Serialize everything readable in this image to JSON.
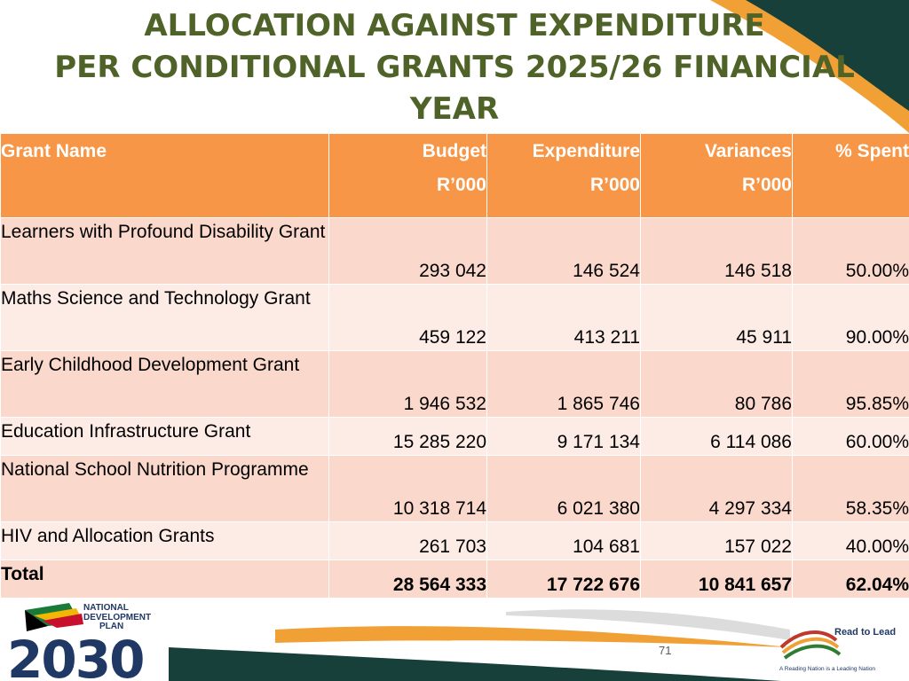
{
  "title": {
    "line1": "ALLOCATION AGAINST EXPENDITURE",
    "line2": "PER CONDITIONAL GRANTS 2025/26 FINANCIAL",
    "line3": "YEAR"
  },
  "table": {
    "headers": {
      "name": "Grant Name",
      "budget": "Budget",
      "budget_unit": "R’000",
      "expenditure": "Expenditure",
      "expenditure_unit": "R’000",
      "variances": "Variances",
      "variances_unit": "R’000",
      "spent": "% Spent"
    },
    "rows": [
      {
        "name": "Learners with Profound Disability Grant",
        "budget": "293 042",
        "expenditure": "146 524",
        "variance": "146 518",
        "spent": "50.00%"
      },
      {
        "name": "Maths Science and Technology Grant",
        "budget": "459 122",
        "expenditure": "413 211",
        "variance": "45 911",
        "spent": "90.00%"
      },
      {
        "name": "Early Childhood Development Grant",
        "budget": "1 946 532",
        "expenditure": "1 865 746",
        "variance": "80 786",
        "spent": "95.85%"
      },
      {
        "name": "Education Infrastructure Grant",
        "budget": "15 285 220",
        "expenditure": "9 171 134",
        "variance": "6 114 086",
        "spent": "60.00%"
      },
      {
        "name": "National School Nutrition Programme",
        "budget": "10 318 714",
        "expenditure": "6 021 380",
        "variance": "4 297 334",
        "spent": "58.35%"
      },
      {
        "name": "HIV and Allocation Grants",
        "budget": "261 703",
        "expenditure": "104 681",
        "variance": "157 022",
        "spent": "40.00%"
      }
    ],
    "total": {
      "name": "Total",
      "budget": "28 564 333",
      "expenditure": "17 722 676",
      "variance": "10 841 657",
      "spent": "62.04%"
    }
  },
  "footer": {
    "page_number": "71",
    "ndp_logo_text": [
      "NATIONAL",
      "DEVELOPMENT",
      "PLAN",
      "2030"
    ],
    "rtl_logo_title": "Read to Lead",
    "rtl_logo_tagline": "A Reading Nation is a Leading Nation"
  },
  "colors": {
    "title": "#4f6228",
    "header_bg": "#f79646",
    "row_odd": "#fad8cc",
    "row_even": "#fdebe5",
    "swoosh_dark": "#17403a",
    "swoosh_orange": "#f0a035"
  }
}
